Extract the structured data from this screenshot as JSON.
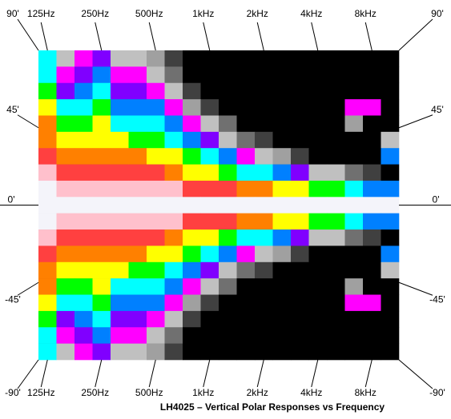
{
  "chart_data": {
    "type": "heatmap",
    "title": "LH4025 – Vertical Polar Responses vs Frequency",
    "x": [
      125,
      160,
      200,
      250,
      315,
      400,
      500,
      630,
      800,
      1000,
      1250,
      1600,
      2000,
      2500,
      3150,
      4000,
      5000,
      6300,
      8000,
      10000
    ],
    "y": [
      90,
      80,
      70,
      60,
      50,
      40,
      30,
      20,
      10,
      0,
      -10,
      -20,
      -30,
      -40,
      -50,
      -60,
      -70,
      -80,
      -90
    ],
    "x_scale": "log",
    "xticks": [
      {
        "value": 125,
        "label": "125Hz"
      },
      {
        "value": 250,
        "label": "250Hz"
      },
      {
        "value": 500,
        "label": "500Hz"
      },
      {
        "value": 1000,
        "label": "1kHz"
      },
      {
        "value": 2000,
        "label": "2kHz"
      },
      {
        "value": 4000,
        "label": "4kHz"
      },
      {
        "value": 8000,
        "label": "8kHz"
      }
    ],
    "ylim": [
      -90,
      90
    ],
    "yticks": [
      {
        "value": 90,
        "label": "90'"
      },
      {
        "value": 45,
        "label": "45'"
      },
      {
        "value": 0,
        "label": "0'"
      },
      {
        "value": -45,
        "label": "-45'"
      },
      {
        "value": -90,
        "label": "-90'"
      }
    ],
    "color_step": 2,
    "colors": [
      "#f4f4fa",
      "#ffc0cc",
      "#ff4040",
      "#ff8000",
      "#ffff00",
      "#00ff00",
      "#00ffff",
      "#0080ff",
      "#8000ff",
      "#ff00ff",
      "#c0c0c0",
      "#a0a0a0",
      "#707070",
      "#404040",
      "#202020",
      "#000000"
    ],
    "values": [
      [
        -13,
        -20,
        -19,
        -17,
        -21,
        -21,
        -23,
        -27,
        -32,
        -32,
        -32,
        -32,
        -32,
        -32,
        -32,
        -32,
        -32,
        -32,
        -32,
        -32
      ],
      [
        -12,
        -18,
        -17,
        -15,
        -19,
        -19,
        -20,
        -24,
        -30,
        -32,
        -32,
        -32,
        -32,
        -32,
        -32,
        -32,
        -32,
        -32,
        -32,
        -32
      ],
      [
        -10,
        -16,
        -15,
        -13,
        -16,
        -17,
        -18,
        -21,
        -26,
        -30,
        -32,
        -32,
        -32,
        -32,
        -32,
        -32,
        -32,
        -32,
        -32,
        -32
      ],
      [
        -9,
        -13,
        -13,
        -11,
        -14,
        -14,
        -15,
        -18,
        -23,
        -26,
        -30,
        -32,
        -32,
        -32,
        -32,
        -32,
        -32,
        -19,
        -18,
        -32
      ],
      [
        -7,
        -11,
        -11,
        -9,
        -12,
        -12,
        -13,
        -15,
        -19,
        -21,
        -25,
        -30,
        -32,
        -32,
        -32,
        -32,
        -32,
        -22,
        -32,
        -32
      ],
      [
        -6,
        -9,
        -8,
        -8,
        -9,
        -10,
        -10,
        -12,
        -15,
        -17,
        -20,
        -24,
        -27,
        -30,
        -32,
        -32,
        -32,
        -32,
        -32,
        -21
      ],
      [
        -4,
        -7,
        -6,
        -6,
        -7,
        -7,
        -8,
        -9,
        -11,
        -13,
        -15,
        -18,
        -20,
        -23,
        -26,
        -30,
        -32,
        -32,
        -32,
        -14
      ],
      [
        -3,
        -4,
        -4,
        -4,
        -5,
        -5,
        -5,
        -6,
        -8,
        -9,
        -10,
        -12,
        -13,
        -15,
        -17,
        -20,
        -21,
        -24,
        -27,
        -30
      ],
      [
        -1,
        -2,
        -2,
        -2,
        -2,
        -3,
        -3,
        -3,
        -4,
        -4,
        -5,
        -6,
        -7,
        -8,
        -9,
        -10,
        -11,
        -12,
        -14,
        -15
      ],
      [
        0,
        0,
        0,
        0,
        0,
        0,
        0,
        0,
        0,
        0,
        0,
        0,
        0,
        0,
        0,
        0,
        0,
        0,
        0,
        0
      ],
      [
        -1,
        -2,
        -2,
        -2,
        -2,
        -3,
        -3,
        -3,
        -4,
        -4,
        -5,
        -6,
        -7,
        -8,
        -9,
        -10,
        -11,
        -12,
        -14,
        -15
      ],
      [
        -3,
        -4,
        -4,
        -4,
        -5,
        -5,
        -5,
        -6,
        -8,
        -9,
        -10,
        -12,
        -13,
        -15,
        -17,
        -20,
        -21,
        -24,
        -27,
        -30
      ],
      [
        -4,
        -7,
        -6,
        -6,
        -7,
        -7,
        -8,
        -9,
        -11,
        -13,
        -15,
        -18,
        -20,
        -23,
        -26,
        -30,
        -32,
        -32,
        -32,
        -14
      ],
      [
        -6,
        -9,
        -8,
        -8,
        -9,
        -10,
        -10,
        -12,
        -15,
        -17,
        -20,
        -24,
        -27,
        -30,
        -32,
        -32,
        -32,
        -32,
        -32,
        -21
      ],
      [
        -7,
        -11,
        -11,
        -9,
        -12,
        -12,
        -13,
        -15,
        -19,
        -21,
        -25,
        -30,
        -32,
        -32,
        -32,
        -32,
        -32,
        -22,
        -32,
        -32
      ],
      [
        -9,
        -13,
        -13,
        -11,
        -14,
        -14,
        -15,
        -18,
        -23,
        -26,
        -30,
        -32,
        -32,
        -32,
        -32,
        -32,
        -32,
        -19,
        -18,
        -32
      ],
      [
        -10,
        -16,
        -15,
        -13,
        -16,
        -17,
        -18,
        -21,
        -26,
        -30,
        -32,
        -32,
        -32,
        -32,
        -32,
        -32,
        -32,
        -32,
        -32,
        -32
      ],
      [
        -12,
        -18,
        -17,
        -15,
        -19,
        -19,
        -20,
        -24,
        -30,
        -32,
        -32,
        -32,
        -32,
        -32,
        -32,
        -32,
        -32,
        -32,
        -32,
        -32
      ],
      [
        -13,
        -20,
        -19,
        -17,
        -21,
        -21,
        -23,
        -27,
        -32,
        -32,
        -32,
        -32,
        -32,
        -32,
        -32,
        -32,
        -32,
        -32,
        -32,
        -32
      ]
    ]
  }
}
